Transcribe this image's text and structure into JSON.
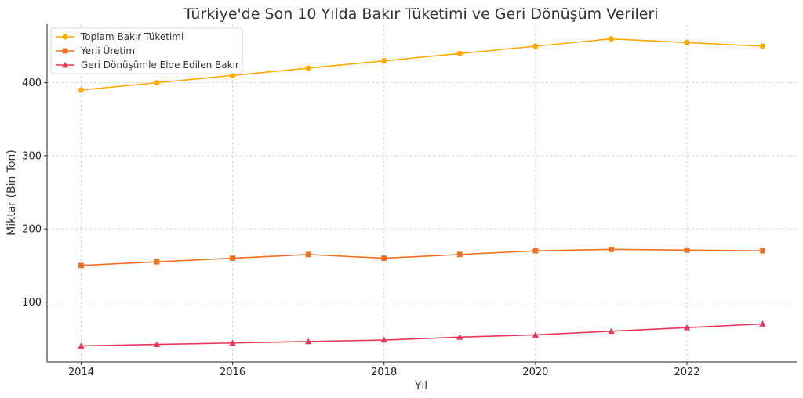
{
  "chart_data": {
    "type": "line",
    "title": "Türkiye'de Son 10 Yılda Bakır Tüketimi ve Geri Dönüşüm Verileri",
    "xlabel": "Yıl",
    "ylabel": "Miktar (Bin Ton)",
    "x": [
      2014,
      2015,
      2016,
      2017,
      2018,
      2019,
      2020,
      2021,
      2022,
      2023
    ],
    "x_ticks": [
      2014,
      2016,
      2018,
      2020,
      2022
    ],
    "y_ticks": [
      100,
      200,
      300,
      400
    ],
    "xlim": [
      2013.55,
      2023.45
    ],
    "ylim": [
      18,
      480
    ],
    "grid": true,
    "legend_position": "top-left",
    "series": [
      {
        "name": "Toplam Bakır Tüketimi",
        "color": "#FFAA00",
        "marker": "circle",
        "values": [
          390,
          400,
          410,
          420,
          430,
          440,
          450,
          460,
          455,
          450
        ]
      },
      {
        "name": "Yerli Üretim",
        "color": "#F07020",
        "marker": "square",
        "values": [
          150,
          155,
          160,
          165,
          160,
          165,
          170,
          172,
          171,
          170
        ]
      },
      {
        "name": "Geri Dönüşümle Elde Edilen Bakır",
        "color": "#E8365A",
        "marker": "triangle",
        "values": [
          40,
          42,
          44,
          46,
          48,
          52,
          55,
          60,
          65,
          70
        ]
      }
    ]
  }
}
